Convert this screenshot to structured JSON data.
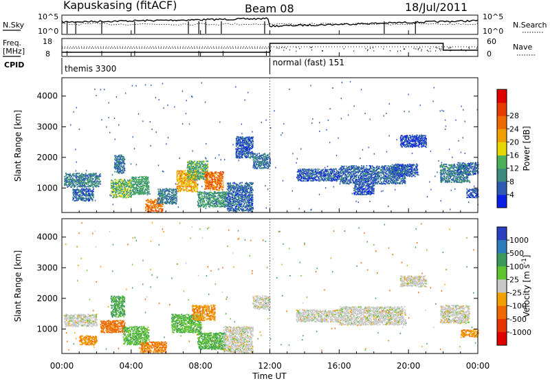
{
  "header": {
    "station": "Kapuskasing (fitACF)",
    "beam": "Beam 08",
    "date": "18/Jul/2011"
  },
  "top_panels": {
    "nsky_label": "N.Sky",
    "nsky_ticks": [
      "10^5",
      "10^0"
    ],
    "nsearch_label": "N.Search",
    "nsearch_ticks": [
      "10^5",
      "10^0"
    ],
    "freq_label_line1": "Freq.",
    "freq_label_line2": "[MHz]",
    "freq_ticks": [
      "18",
      "8"
    ],
    "nave_label": "Nave",
    "nave_ticks": [
      "60",
      "0"
    ],
    "cpid_label": "CPID",
    "cpid_segments": [
      {
        "label": "themis 3300",
        "start_hour": 0,
        "end_hour": 12
      },
      {
        "label": "normal (fast) 151",
        "start_hour": 12,
        "end_hour": 24
      }
    ]
  },
  "time_axis": {
    "title": "Time UT",
    "tick_labels": [
      "00:00",
      "04:00",
      "08:00",
      "12:00",
      "16:00",
      "20:00",
      "00:00"
    ],
    "tick_hours": [
      0,
      4,
      8,
      12,
      16,
      20,
      24
    ]
  },
  "chart_data": [
    {
      "type": "heatmap",
      "title": "",
      "xlabel": "",
      "ylabel": "Slant Range [km]",
      "xlim_hours": [
        0,
        24
      ],
      "ylim": [
        200,
        4600
      ],
      "yticks": [
        1000,
        2000,
        3000,
        4000
      ],
      "colorbar": {
        "label": "Power [dB]",
        "ticks": [
          "4",
          "8",
          "12",
          "16",
          "20",
          "24",
          "28"
        ],
        "colors": [
          "#0a1ee6",
          "#2e5ab4",
          "#3b8c7c",
          "#4cb05a",
          "#e6d800",
          "#f0a000",
          "#ec6a00",
          "#e63a00",
          "#e00000"
        ]
      },
      "regions": [
        {
          "t0": 0.1,
          "t1": 2.2,
          "r0": 1050,
          "r1": 1500,
          "v": 9
        },
        {
          "t0": 0.6,
          "t1": 1.8,
          "r0": 600,
          "r1": 1000,
          "v": 7
        },
        {
          "t0": 2.8,
          "t1": 4.0,
          "r0": 700,
          "r1": 1300,
          "v": 14
        },
        {
          "t0": 3.0,
          "t1": 3.6,
          "r0": 1500,
          "r1": 2100,
          "v": 8
        },
        {
          "t0": 4.0,
          "t1": 5.0,
          "r0": 800,
          "r1": 1400,
          "v": 12
        },
        {
          "t0": 4.8,
          "t1": 5.8,
          "r0": 250,
          "r1": 650,
          "v": 26
        },
        {
          "t0": 5.5,
          "t1": 6.6,
          "r0": 500,
          "r1": 1000,
          "v": 9
        },
        {
          "t0": 6.6,
          "t1": 7.8,
          "r0": 900,
          "r1": 1600,
          "v": 22
        },
        {
          "t0": 7.2,
          "t1": 8.4,
          "r0": 1300,
          "r1": 1900,
          "v": 13
        },
        {
          "t0": 8.2,
          "t1": 9.3,
          "r0": 950,
          "r1": 1550,
          "v": 26
        },
        {
          "t0": 7.8,
          "t1": 9.5,
          "r0": 400,
          "r1": 900,
          "v": 11
        },
        {
          "t0": 9.5,
          "t1": 11.0,
          "r0": 250,
          "r1": 1200,
          "v": 7
        },
        {
          "t0": 10.0,
          "t1": 11.0,
          "r0": 2000,
          "r1": 2700,
          "v": 6
        },
        {
          "t0": 11.0,
          "t1": 12.0,
          "r0": 1650,
          "r1": 2150,
          "v": 8
        },
        {
          "t0": 13.5,
          "t1": 16.0,
          "r0": 1250,
          "r1": 1650,
          "v": 6
        },
        {
          "t0": 16.0,
          "t1": 19.8,
          "r0": 1150,
          "r1": 1750,
          "v": 7
        },
        {
          "t0": 16.8,
          "t1": 18.0,
          "r0": 800,
          "r1": 1150,
          "v": 5
        },
        {
          "t0": 19.0,
          "t1": 20.5,
          "r0": 1400,
          "r1": 1800,
          "v": 6
        },
        {
          "t0": 19.5,
          "t1": 21.0,
          "r0": 2350,
          "r1": 2750,
          "v": 5
        },
        {
          "t0": 21.8,
          "t1": 23.5,
          "r0": 1200,
          "r1": 1800,
          "v": 9
        },
        {
          "t0": 22.8,
          "t1": 24.0,
          "r0": 1450,
          "r1": 1850,
          "v": 7
        },
        {
          "t0": 23.3,
          "t1": 24.0,
          "r0": 700,
          "r1": 1000,
          "v": 5
        }
      ]
    },
    {
      "type": "heatmap",
      "title": "",
      "xlabel": "Time UT",
      "ylabel": "Slant Range [km]",
      "xlim_hours": [
        0,
        24
      ],
      "ylim": [
        200,
        4600
      ],
      "yticks": [
        1000,
        2000,
        3000,
        4000
      ],
      "colorbar": {
        "label": "Velocity [m s^-1]",
        "ticks": [
          "1000",
          "500",
          "100",
          "25",
          "-25",
          "-100",
          "-500",
          "-1000"
        ],
        "colors": [
          "#2a3fbf",
          "#2c7cbc",
          "#3c9a5a",
          "#60c430",
          "#c8c8c8",
          "#f0a000",
          "#ee6a00",
          "#e63400",
          "#e00000"
        ]
      },
      "regions": [
        {
          "t0": 0.1,
          "t1": 2.0,
          "r0": 1100,
          "r1": 1500,
          "v": 0
        },
        {
          "t0": 1.0,
          "t1": 2.0,
          "r0": 500,
          "r1": 800,
          "v": -80
        },
        {
          "t0": 2.2,
          "t1": 3.6,
          "r0": 900,
          "r1": 1300,
          "v": -200
        },
        {
          "t0": 2.8,
          "t1": 3.6,
          "r0": 1400,
          "r1": 2100,
          "v": 150
        },
        {
          "t0": 3.5,
          "t1": 5.0,
          "r0": 500,
          "r1": 1100,
          "v": 80
        },
        {
          "t0": 4.5,
          "t1": 6.0,
          "r0": 250,
          "r1": 600,
          "v": -120
        },
        {
          "t0": 6.3,
          "t1": 8.0,
          "r0": 900,
          "r1": 1500,
          "v": 80
        },
        {
          "t0": 7.5,
          "t1": 8.8,
          "r0": 1300,
          "r1": 1800,
          "v": -90
        },
        {
          "t0": 7.8,
          "t1": 9.4,
          "r0": 350,
          "r1": 900,
          "v": 90
        },
        {
          "t0": 9.3,
          "t1": 11.0,
          "r0": 250,
          "r1": 1100,
          "v": 0
        },
        {
          "t0": 11.0,
          "t1": 12.0,
          "r0": 1650,
          "r1": 2100,
          "v": 0
        },
        {
          "t0": 13.5,
          "t1": 16.0,
          "r0": 1250,
          "r1": 1650,
          "v": 0
        },
        {
          "t0": 16.0,
          "t1": 19.8,
          "r0": 1150,
          "r1": 1750,
          "v": 0
        },
        {
          "t0": 19.5,
          "t1": 21.0,
          "r0": 2400,
          "r1": 2750,
          "v": 0
        },
        {
          "t0": 21.8,
          "t1": 23.5,
          "r0": 1200,
          "r1": 1800,
          "v": 0
        },
        {
          "t0": 23.0,
          "t1": 24.0,
          "r0": 750,
          "r1": 1000,
          "v": -80
        }
      ]
    }
  ]
}
